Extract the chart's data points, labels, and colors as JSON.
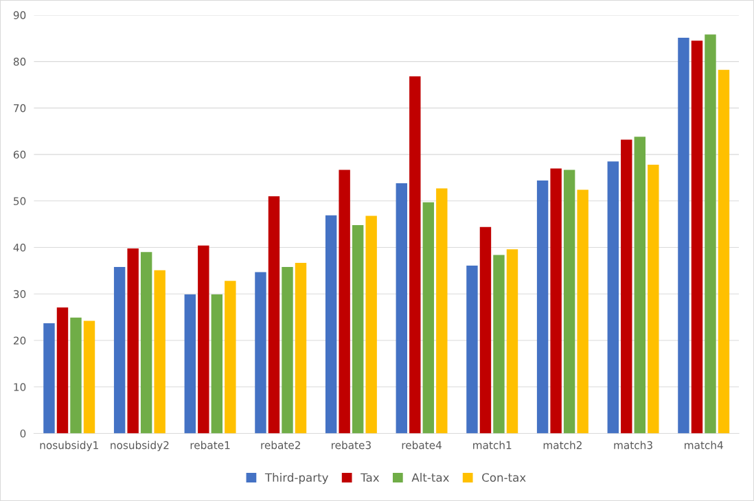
{
  "chart_data": {
    "type": "bar",
    "categories": [
      "nosubsidy1",
      "nosubsidy2",
      "rebate1",
      "rebate2",
      "rebate3",
      "rebate4",
      "match1",
      "match2",
      "match3",
      "match4"
    ],
    "series": [
      {
        "name": "Third-party",
        "color": "#4472c4",
        "values": [
          23.7,
          35.8,
          29.9,
          34.7,
          46.9,
          53.8,
          36.1,
          54.4,
          58.5,
          85.1
        ]
      },
      {
        "name": "Tax",
        "color": "#c00000",
        "values": [
          27.1,
          39.8,
          40.4,
          51.0,
          56.7,
          76.8,
          44.4,
          57.0,
          63.2,
          84.5
        ]
      },
      {
        "name": "Alt-tax",
        "color": "#70ad47",
        "values": [
          24.9,
          39.0,
          29.9,
          35.8,
          44.8,
          49.7,
          38.4,
          56.7,
          63.8,
          85.8
        ]
      },
      {
        "name": "Con-tax",
        "color": "#ffc000",
        "values": [
          24.2,
          35.1,
          32.8,
          36.7,
          46.8,
          52.7,
          39.6,
          52.4,
          57.8,
          78.2
        ]
      }
    ],
    "ylim": [
      0,
      90
    ],
    "yticks": [
      0,
      10,
      20,
      30,
      40,
      50,
      60,
      70,
      80,
      90
    ],
    "grid": "y",
    "legend": "bottom"
  }
}
